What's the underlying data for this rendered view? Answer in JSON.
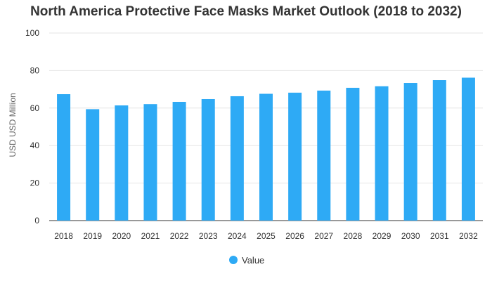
{
  "chart_data": {
    "type": "bar",
    "title": "North America Protective Face Masks Market Outlook (2018 to 2032)",
    "xlabel": "",
    "ylabel": "USD USD Million",
    "ylim": [
      0,
      100
    ],
    "yticks": [
      0,
      20,
      40,
      60,
      80,
      100
    ],
    "categories": [
      "2018",
      "2019",
      "2020",
      "2021",
      "2022",
      "2023",
      "2024",
      "2025",
      "2026",
      "2027",
      "2028",
      "2029",
      "2030",
      "2031",
      "2032"
    ],
    "series": [
      {
        "name": "Value",
        "color": "#2eaaf5",
        "values": [
          67.4,
          59.4,
          61.4,
          62.1,
          63.3,
          64.8,
          66.3,
          67.6,
          68.2,
          69.3,
          70.8,
          71.6,
          73.4,
          74.9,
          76.2
        ]
      }
    ],
    "grid": true,
    "legend_position": "bottom-center"
  }
}
